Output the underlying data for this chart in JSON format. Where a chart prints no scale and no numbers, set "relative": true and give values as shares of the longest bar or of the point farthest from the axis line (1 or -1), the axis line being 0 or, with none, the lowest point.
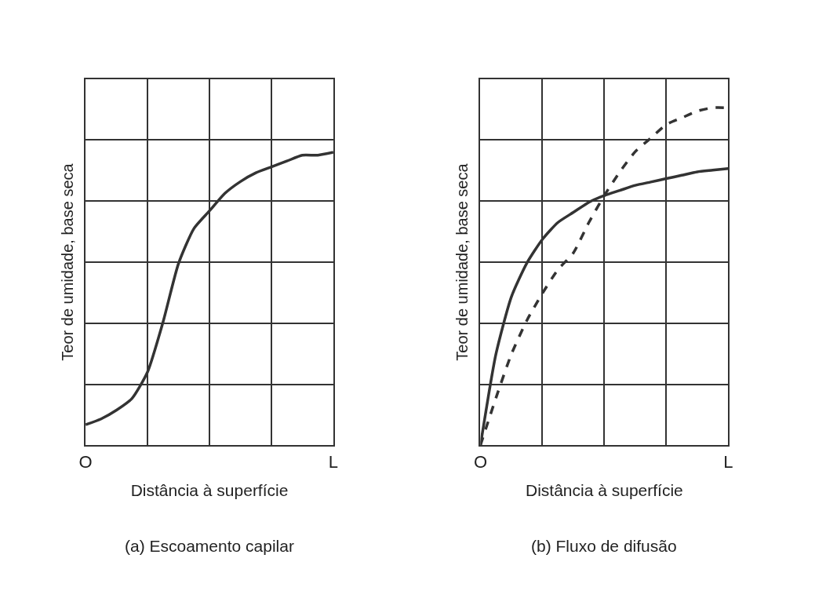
{
  "chart_data": [
    {
      "type": "line",
      "relative": true,
      "xlabel": "Distância à superfície",
      "ylabel": "Teor de umidade, base seca",
      "annotations": [
        "(a) Escoamento capilar"
      ],
      "categories": [
        "O",
        null,
        null,
        null,
        null,
        null,
        null,
        null,
        null,
        null,
        null,
        null,
        null,
        null,
        null,
        null,
        "L"
      ],
      "grid": true,
      "marker": "none",
      "series": [
        {
          "color": "#333333",
          "line_style": "solid",
          "values": [
            0.07,
            0.09,
            0.12,
            0.16,
            0.25,
            0.42,
            0.62,
            0.74,
            0.8,
            0.86,
            0.9,
            0.93,
            0.95,
            0.97,
            0.99,
            0.99,
            1.0
          ]
        }
      ]
    },
    {
      "type": "line",
      "relative": true,
      "xlabel": "Distância à superfície",
      "ylabel": "Teor de umidade, base seca",
      "annotations": [
        "(b) Fluxo de difusão"
      ],
      "categories": [
        "O",
        null,
        null,
        null,
        null,
        null,
        null,
        null,
        null,
        null,
        null,
        null,
        null,
        null,
        null,
        null,
        "L"
      ],
      "grid": true,
      "marker": "none",
      "series": [
        {
          "color": "#333333",
          "line_style": "solid",
          "values": [
            0,
            0.27,
            0.44,
            0.54,
            0.61,
            0.66,
            0.69,
            0.72,
            0.74,
            0.755,
            0.77,
            0.78,
            0.79,
            0.8,
            0.81,
            0.815,
            0.82
          ]
        },
        {
          "color": "#333333",
          "line_style": "dashed",
          "values": [
            0,
            0.14,
            0.27,
            0.37,
            0.45,
            0.52,
            0.57,
            0.66,
            0.74,
            0.81,
            0.87,
            0.91,
            0.95,
            0.97,
            0.99,
            1.0,
            1.0
          ]
        }
      ]
    }
  ]
}
